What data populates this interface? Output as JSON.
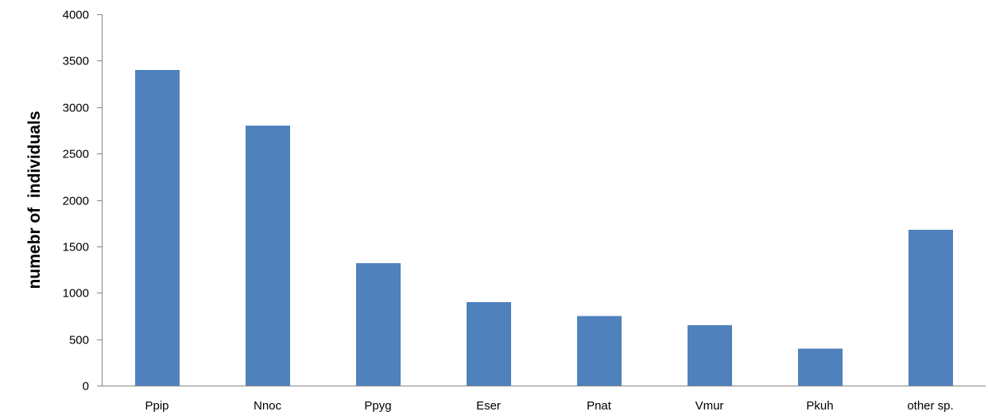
{
  "chart_data": {
    "type": "bar",
    "title": "",
    "xlabel": "",
    "ylabel": "numebr of  individuals",
    "categories": [
      "Ppip",
      "Nnoc",
      "Ppyg",
      "Eser",
      "Pnat",
      "Vmur",
      "Pkuh",
      "other sp."
    ],
    "values": [
      3400,
      2800,
      1320,
      900,
      750,
      650,
      400,
      1680
    ],
    "ylim": [
      0,
      4000
    ],
    "yticks": [
      0,
      500,
      1000,
      1500,
      2000,
      2500,
      3000,
      3500,
      4000
    ],
    "grid": false,
    "legend": "none",
    "bar_color": "#4f81bd"
  }
}
